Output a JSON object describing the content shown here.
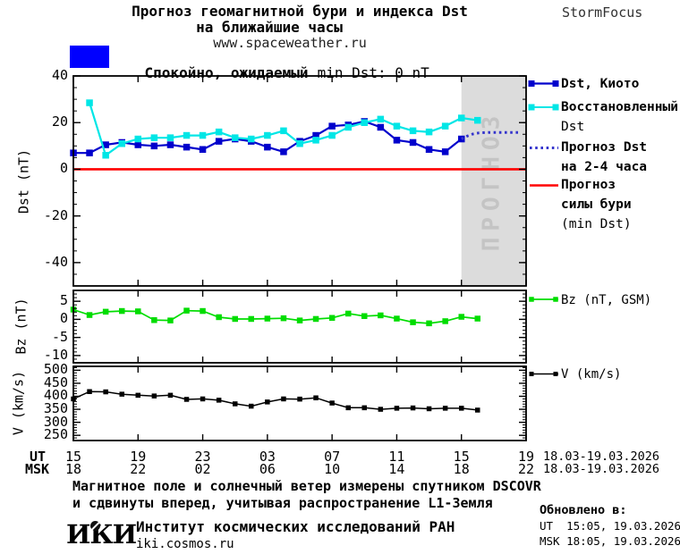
{
  "header": {
    "title_line1": "Прогноз геомагнитной бури и индекса Dst",
    "title_line2": "на ближайшие часы",
    "title_line3": "www.spaceweather.ru",
    "brand": "StormFocus"
  },
  "status": {
    "swatch_color": "#0000ff",
    "text_bold": "Спокойно, ожидаемый",
    "text_rest": "min Dst: 0 nT"
  },
  "forecast_band": {
    "label": "ПРОГНОЗ",
    "fill": "#dcdcdc",
    "text_color": "#c4c4c4",
    "start_hour": 24,
    "end_hour": 28
  },
  "axes": {
    "dst_label": "Dst (nT)",
    "bz_label": "Bz (nT)",
    "v_label": "V (km/s)",
    "ut_row_label": "UT",
    "msk_row_label": "MSK",
    "ut_ticks": [
      "15",
      "19",
      "23",
      "03",
      "07",
      "11",
      "15",
      "19"
    ],
    "msk_ticks": [
      "18",
      "22",
      "02",
      "06",
      "10",
      "14",
      "18",
      "22"
    ],
    "ut_date": "18.03-19.03.2026",
    "msk_date": "18.03-19.03.2026"
  },
  "legend": {
    "kyoto": "Dst, Киото",
    "restored_l1": "Восстановленный",
    "restored_l2": "Dst",
    "forecast_l1": "Прогноз Dst",
    "forecast_l2": "на 2-4 часа",
    "storm_l1": "Прогноз",
    "storm_l2": "силы бури",
    "storm_l3": "(min Dst)",
    "bz": "Bz (nT, GSM)",
    "v": "V (km/s)"
  },
  "footer": {
    "note_line1": "Магнитное поле и солнечный ветер измерены спутником DSCOVR",
    "note_line2": "и сдвинуты вперед, учитывая распространение L1-Земля",
    "logo": "ИКИ",
    "institute": "Институт космических исследований РАН",
    "site": "iki.cosmos.ru",
    "updated_label": "Обновлено в:",
    "updated_ut": "UT  15:05, 19.03.2026",
    "updated_msk": "MSK 18:05, 19.03.2026"
  },
  "chart_data": [
    {
      "type": "line",
      "title": "Прогноз геомагнитной бури и индекса Dst",
      "ylabel": "Dst (nT)",
      "ylim": [
        -50,
        40
      ],
      "yticks": [
        40,
        20,
        0,
        -20,
        -40
      ],
      "yminor_step": 5,
      "x_unit": "hour_UT",
      "x_start_ut": 15,
      "x_hours": 28,
      "xtick_hours": [
        0,
        4,
        8,
        12,
        16,
        20,
        24,
        28
      ],
      "series": [
        {
          "name": "Dst, Киото",
          "color": "#0000cc",
          "marker": "square",
          "x0": 0,
          "values": [
            7,
            7,
            10.5,
            11.5,
            10.5,
            10,
            10.5,
            9.5,
            8.5,
            12,
            13,
            12,
            9.5,
            7.5,
            12,
            14.5,
            18.5,
            19,
            20.5,
            18,
            12.5,
            11.5,
            8.5,
            7.5,
            13
          ]
        },
        {
          "name": "Восстановленный Dst",
          "color": "#00e6e6",
          "marker": "square",
          "x0": 1,
          "values": [
            28.5,
            6,
            11,
            13,
            13.5,
            13.5,
            14.5,
            14.5,
            16,
            13.5,
            13,
            14.5,
            16.5,
            11,
            12.5,
            14.5,
            18,
            20,
            21.5,
            18.5,
            16.5,
            16,
            18.5,
            22,
            21
          ]
        },
        {
          "name": "Прогноз Dst на 2-4 часа",
          "color": "#3333cc",
          "style": "dotted",
          "points": [
            [
              24,
              13
            ],
            [
              24.35,
              14.2
            ],
            [
              24.7,
              15.1
            ],
            [
              25.1,
              15.6
            ],
            [
              25.7,
              15.8
            ],
            [
              26.4,
              15.8
            ],
            [
              27.1,
              15.8
            ],
            [
              27.6,
              15.8
            ]
          ]
        },
        {
          "name": "Прогноз силы бури (min Dst)",
          "color": "#ff0000",
          "style": "hline",
          "value": 0
        }
      ]
    },
    {
      "type": "line",
      "ylabel": "Bz (nT)",
      "ylim": [
        -12,
        8
      ],
      "yticks": [
        5,
        0,
        -5,
        -10
      ],
      "yminor_step": 1,
      "series": [
        {
          "name": "Bz (nT, GSM)",
          "color": "#00dd00",
          "marker": "square",
          "x0": 0,
          "values": [
            2.7,
            1.2,
            2.1,
            2.3,
            2.2,
            -0.2,
            -0.3,
            2.4,
            2.3,
            0.6,
            0.1,
            0.1,
            0.2,
            0.3,
            -0.3,
            0.1,
            0.4,
            1.6,
            0.9,
            1.1,
            0.2,
            -0.8,
            -1.1,
            -0.5,
            0.7,
            0.2
          ]
        }
      ]
    },
    {
      "type": "line",
      "ylabel": "V (km/s)",
      "ylim": [
        230,
        515
      ],
      "yticks": [
        500,
        450,
        400,
        350,
        300,
        250
      ],
      "yminor_step": 10,
      "series": [
        {
          "name": "V (km/s)",
          "color": "#000000",
          "marker": "square",
          "x0": 0,
          "values": [
            390,
            418,
            417,
            408,
            404,
            401,
            404,
            388,
            390,
            385,
            371,
            362,
            378,
            390,
            389,
            394,
            374,
            356,
            356,
            350,
            354,
            355,
            352,
            354,
            354,
            347
          ]
        }
      ]
    }
  ]
}
